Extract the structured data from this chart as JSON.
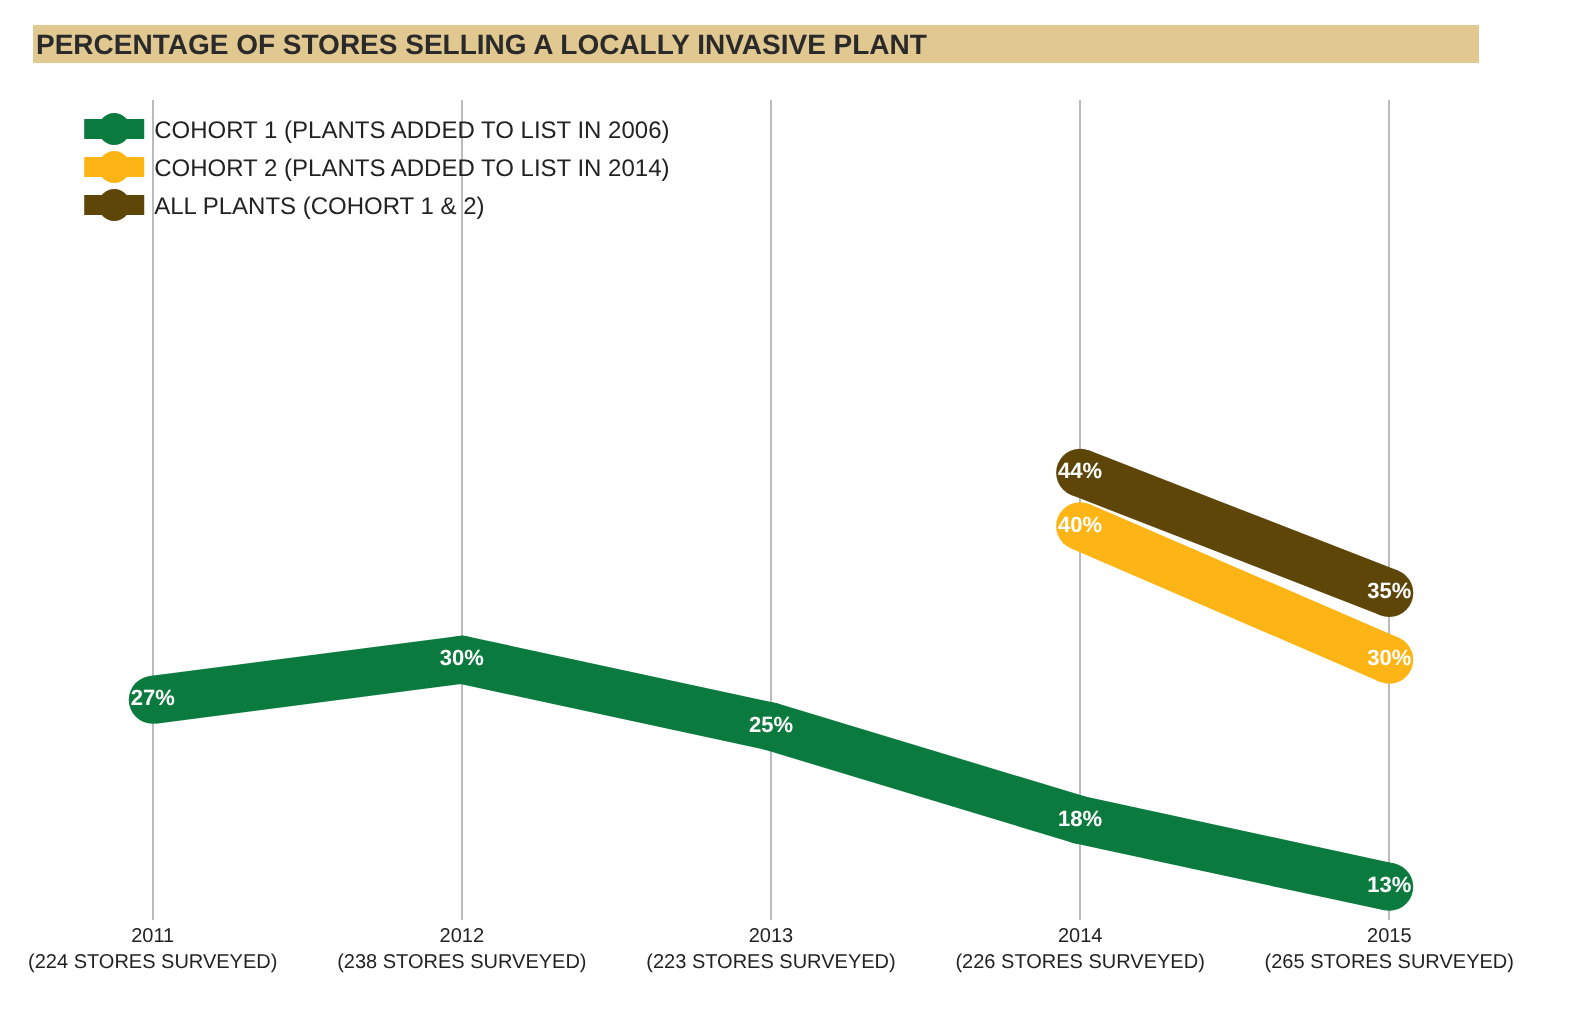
{
  "chart_data": {
    "type": "line",
    "title": "PERCENTAGE OF STORES SELLING A LOCALLY INVASIVE PLANT",
    "categories": [
      "2011\n(224 STORES SURVEYED)",
      "2012\n(238 STORES SURVEYED)",
      "2013\n(223 STORES SURVEYED)",
      "2014\n(226 STORES SURVEYED)",
      "2015\n(265 STORES SURVEYED)"
    ],
    "series": [
      {
        "name": "COHORT 1 (PLANTS ADDED TO LIST IN 2006)",
        "color": "#0b7a3e",
        "values": [
          27,
          30,
          25,
          18,
          13
        ],
        "value_labels": [
          "27%",
          "30%",
          "25%",
          "18%",
          "13%"
        ]
      },
      {
        "name": "COHORT 2 (PLANTS ADDED TO LIST IN 2014)",
        "color": "#fdb515",
        "values": [
          null,
          null,
          null,
          40,
          30
        ],
        "value_labels": [
          null,
          null,
          null,
          "40%",
          "30%"
        ]
      },
      {
        "name": "ALL PLANTS (COHORT 1 & 2)",
        "color": "#5e4608",
        "values": [
          null,
          null,
          null,
          44,
          35
        ],
        "value_labels": [
          null,
          null,
          null,
          "44%",
          "35%"
        ]
      }
    ],
    "grid": "x",
    "legend": "top left",
    "marker": "circle",
    "line_style": "solid"
  }
}
